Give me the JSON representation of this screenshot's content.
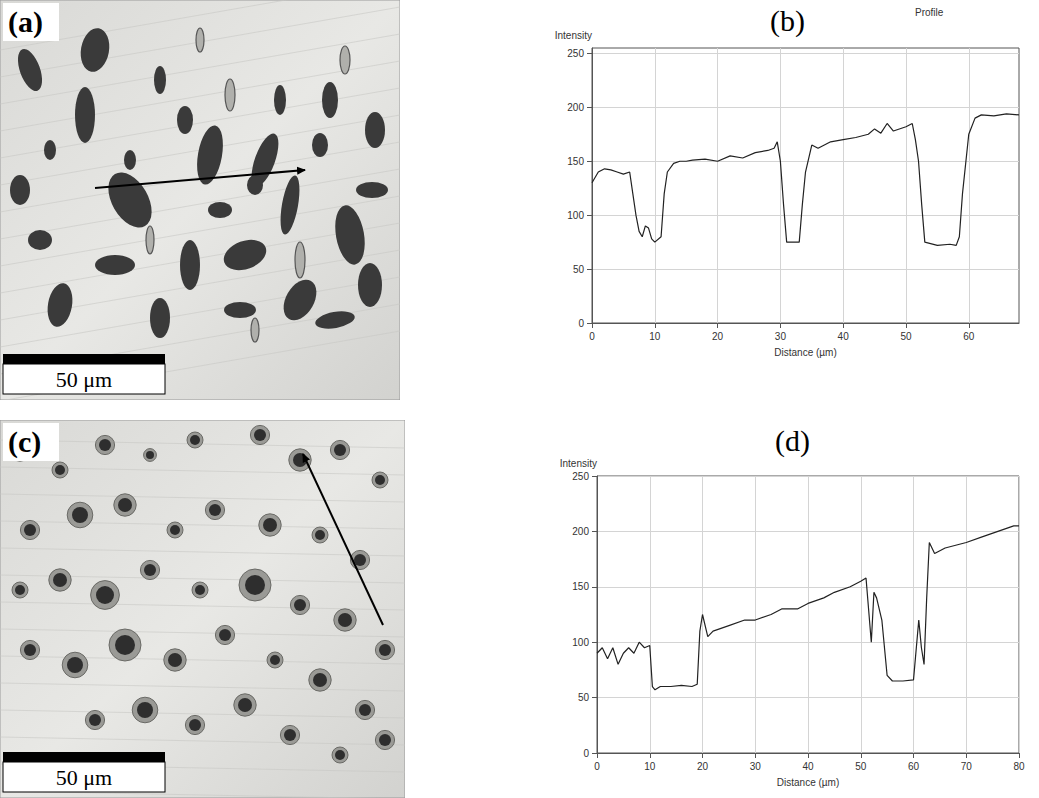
{
  "images": [
    {
      "label": "(a)",
      "scale_bar": "50 μm"
    },
    {
      "label": "(c)",
      "scale_bar": "50 μm"
    }
  ],
  "chart_data": [
    {
      "type": "line",
      "title": "(b)",
      "subtitle": "Profile",
      "x_label": "Distance (µm)",
      "y_label": "Intensity",
      "x": [
        0,
        1,
        2,
        3,
        4,
        5,
        6,
        6.5,
        7,
        7.5,
        8,
        8.5,
        9,
        9.5,
        10,
        11,
        11.5,
        12,
        13,
        14,
        15,
        16,
        18,
        20,
        22,
        24,
        26,
        28,
        29,
        29.5,
        30,
        30.5,
        31,
        32,
        33,
        33.5,
        34,
        35,
        36,
        38,
        40,
        42,
        44,
        45,
        46,
        47,
        48,
        50,
        51,
        51.5,
        52,
        52.5,
        53,
        55,
        57,
        58,
        58.5,
        59,
        60,
        61,
        62,
        64,
        66,
        68
      ],
      "series": [
        {
          "name": "Intensity",
          "color": "#222222",
          "values": [
            130,
            140,
            143,
            142,
            140,
            138,
            140,
            120,
            100,
            85,
            80,
            90,
            88,
            78,
            75,
            80,
            120,
            140,
            148,
            150,
            150,
            151,
            152,
            150,
            155,
            153,
            158,
            160,
            162,
            168,
            150,
            110,
            75,
            75,
            75,
            110,
            140,
            165,
            162,
            168,
            170,
            172,
            175,
            180,
            176,
            185,
            178,
            182,
            185,
            170,
            150,
            110,
            75,
            72,
            73,
            72,
            80,
            120,
            175,
            190,
            193,
            192,
            194,
            193
          ]
        }
      ],
      "xlim": [
        0,
        68
      ],
      "xticks": [
        0,
        10,
        20,
        30,
        40,
        50,
        60
      ],
      "ylim": [
        0,
        255
      ],
      "yticks": [
        0,
        50,
        100,
        150,
        200,
        250
      ],
      "grid": true
    },
    {
      "type": "line",
      "title": "(d)",
      "x_label": "Distance (µm)",
      "y_label": "Intensity",
      "x": [
        0,
        1,
        2,
        3,
        4,
        5,
        6,
        7,
        8,
        9,
        10,
        10.5,
        11,
        12,
        14,
        16,
        18,
        19,
        19.5,
        20,
        21,
        22,
        25,
        28,
        30,
        33,
        35,
        38,
        40,
        43,
        45,
        48,
        50,
        51,
        52,
        52.5,
        53,
        54,
        55,
        56,
        58,
        60,
        61,
        61.5,
        62,
        62.5,
        63,
        64,
        66,
        70,
        73,
        76,
        79,
        80
      ],
      "series": [
        {
          "name": "Intensity",
          "color": "#222222",
          "values": [
            90,
            95,
            85,
            95,
            80,
            90,
            95,
            90,
            100,
            95,
            97,
            60,
            57,
            60,
            60,
            61,
            60,
            62,
            110,
            125,
            105,
            110,
            115,
            120,
            120,
            125,
            130,
            130,
            135,
            140,
            145,
            150,
            155,
            158,
            100,
            145,
            140,
            120,
            70,
            65,
            65,
            66,
            120,
            95,
            80,
            140,
            190,
            180,
            185,
            190,
            195,
            200,
            205,
            205
          ]
        }
      ],
      "xlim": [
        0,
        80
      ],
      "xticks": [
        0,
        10,
        20,
        30,
        40,
        50,
        60,
        70,
        80
      ],
      "ylim": [
        0,
        250
      ],
      "yticks": [
        0,
        50,
        100,
        150,
        200,
        250
      ],
      "grid": true
    }
  ]
}
